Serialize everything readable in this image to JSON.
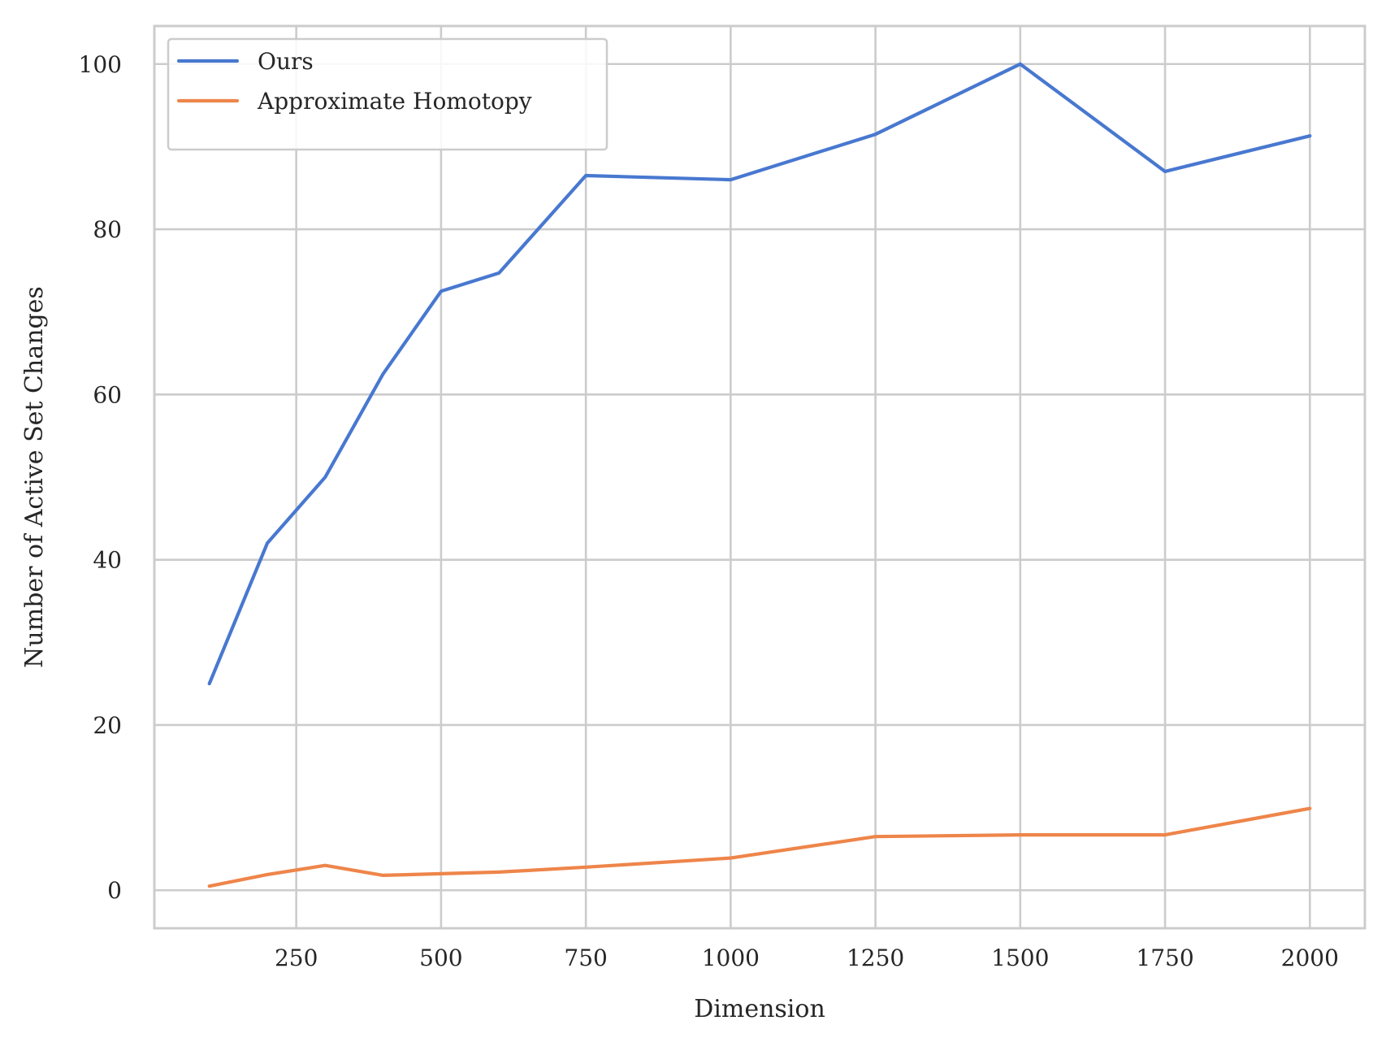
{
  "chart_data": {
    "type": "line",
    "title": "",
    "xlabel": "Dimension",
    "ylabel": "Number of Active Set Changes",
    "x": [
      100,
      200,
      300,
      400,
      500,
      600,
      750,
      1000,
      1250,
      1500,
      1750,
      2000
    ],
    "series": [
      {
        "name": "Ours",
        "color": "#4878d0",
        "values": [
          25,
          42,
          50,
          62.5,
          72.5,
          74.7,
          86.5,
          86,
          91.5,
          100,
          87,
          91.3
        ]
      },
      {
        "name": "Approximate Homotopy",
        "color": "#ee854a",
        "values": [
          0.5,
          1.9,
          3.0,
          1.8,
          2.0,
          2.2,
          2.8,
          3.9,
          6.5,
          6.7,
          6.7,
          9.9
        ]
      }
    ],
    "xlim": [
      5,
      2095
    ],
    "ylim": [
      -4.6,
      104.6
    ],
    "xticks": [
      250,
      500,
      750,
      1000,
      1250,
      1500,
      1750,
      2000
    ],
    "xtick_labels": [
      "250",
      "500",
      "750",
      "1000",
      "1250",
      "1500",
      "1750",
      "2000"
    ],
    "yticks": [
      0,
      20,
      40,
      60,
      80,
      100
    ],
    "ytick_labels": [
      "0",
      "20",
      "40",
      "60",
      "80",
      "100"
    ],
    "grid": true,
    "legend_position": "top-left"
  }
}
